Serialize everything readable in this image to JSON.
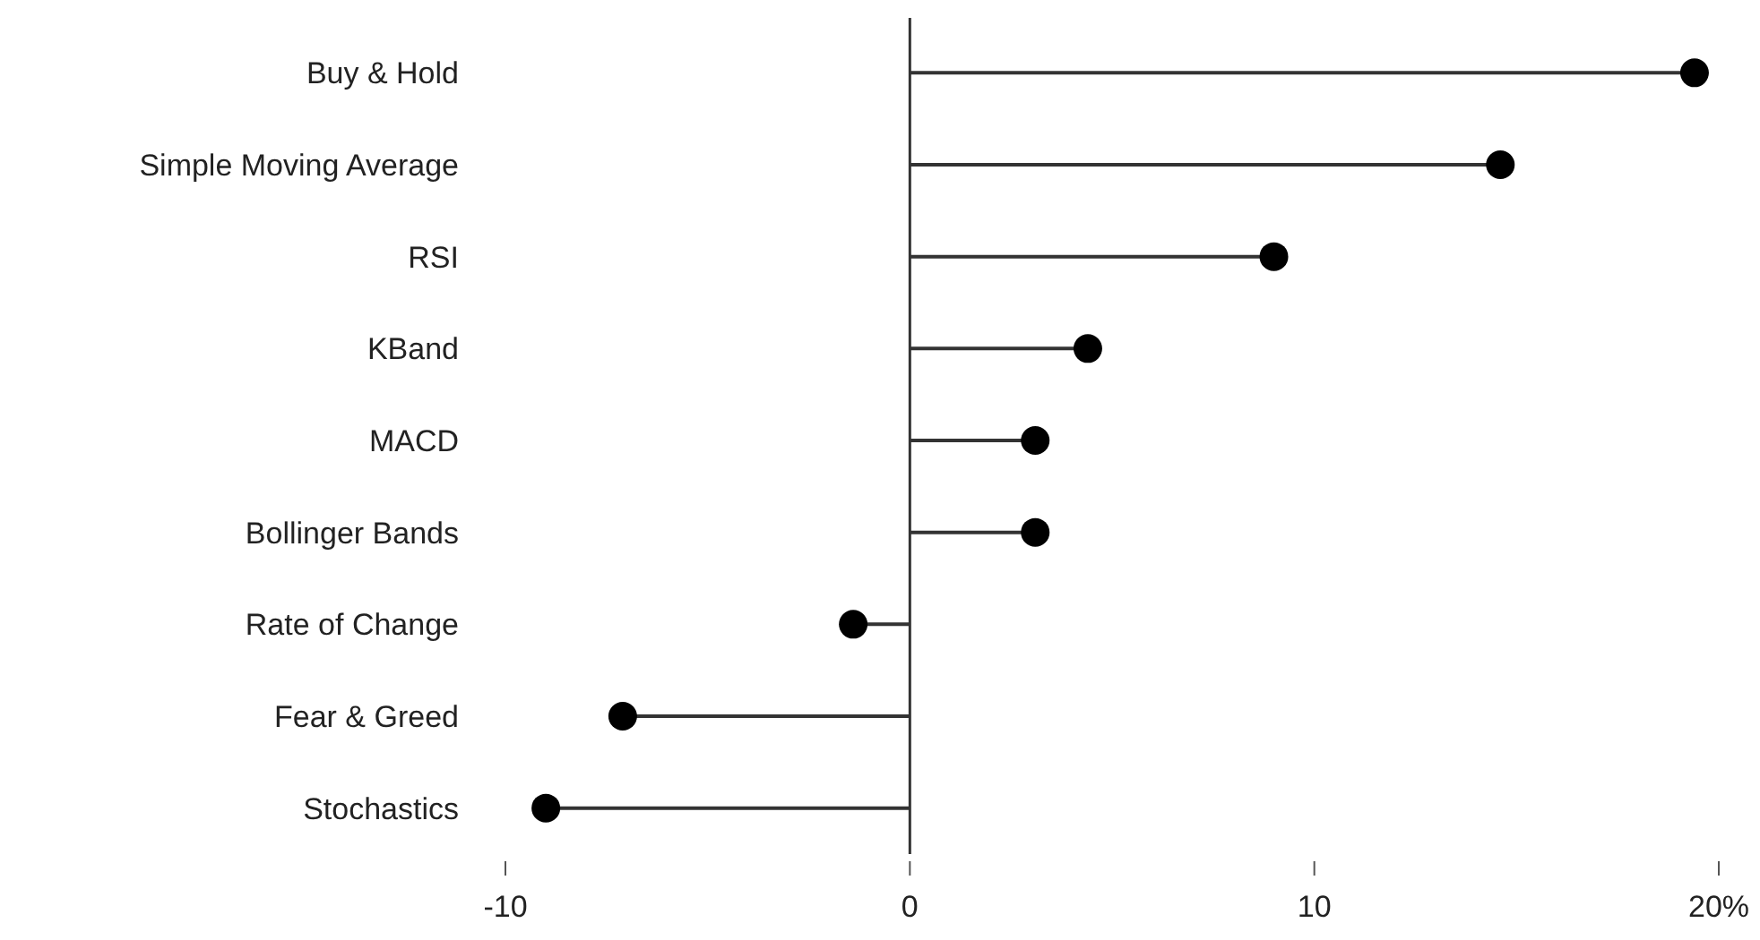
{
  "chart_data": {
    "type": "lollipop",
    "orientation": "horizontal",
    "categories": [
      "Buy & Hold",
      "Simple Moving Average",
      "RSI",
      "KBand",
      "MACD",
      "Bollinger Bands",
      "Rate of Change",
      "Fear & Greed",
      "Stochastics"
    ],
    "values": [
      19.4,
      14.6,
      9.0,
      4.4,
      3.1,
      3.1,
      -1.4,
      -7.1,
      -9.0
    ],
    "color": "#000000",
    "xlim": [
      -10,
      20
    ],
    "xticks": [
      -10,
      0,
      10,
      {
        "value": 20,
        "label": "20%"
      }
    ],
    "marker": "circle"
  }
}
